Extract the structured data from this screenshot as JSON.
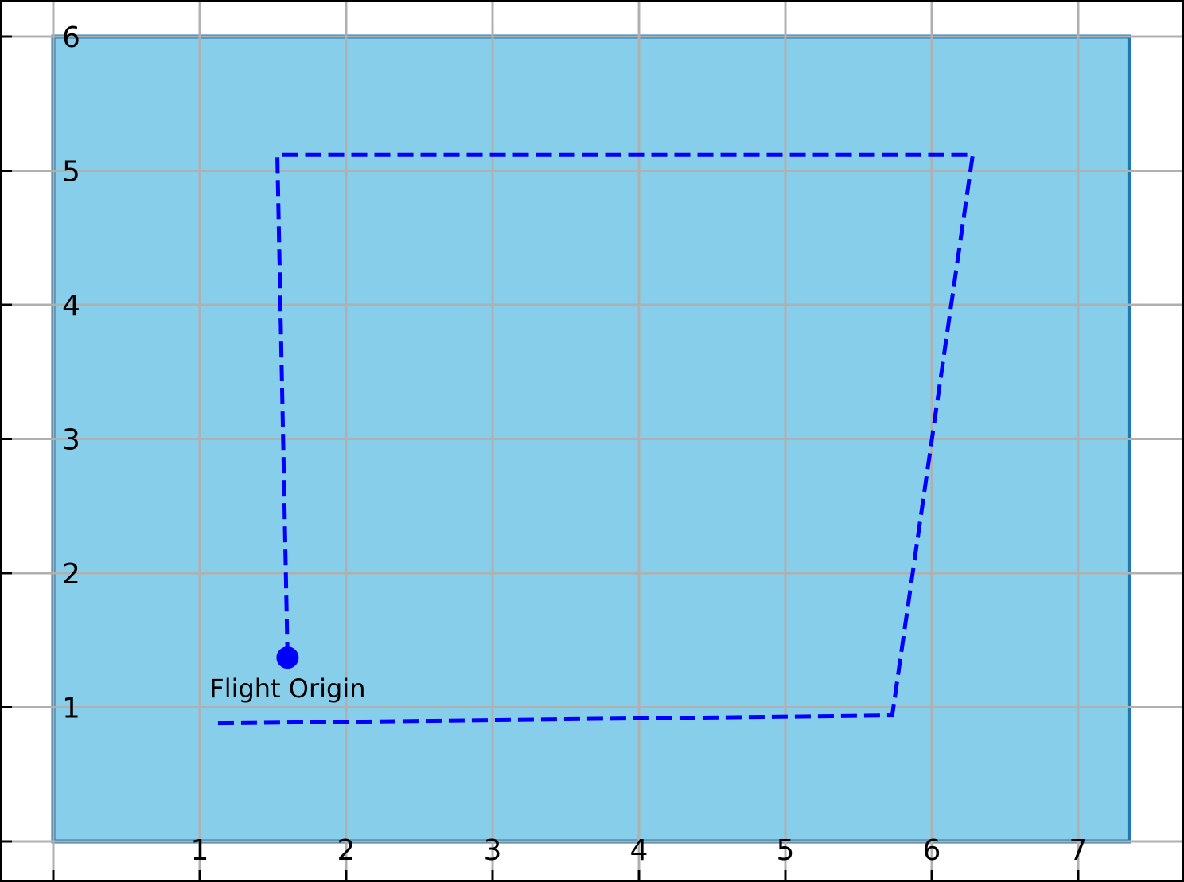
{
  "chart_data": {
    "type": "line",
    "title": "",
    "xlabel": "",
    "ylabel": "",
    "xlim": [
      0,
      7.6
    ],
    "ylim": [
      0,
      6.05
    ],
    "x_ticks": [
      1,
      2,
      3,
      4,
      5,
      6,
      7
    ],
    "y_ticks": [
      1,
      2,
      3,
      4,
      5,
      6
    ],
    "grid": true,
    "region": {
      "x": [
        0,
        7.35
      ],
      "y": [
        0,
        6
      ],
      "fill_color": "#87CEEB",
      "edge_color": "#1F77B4"
    },
    "series": [
      {
        "style": "dashed",
        "color": "#0000FF",
        "points": [
          [
            1.6,
            1.37
          ],
          [
            1.53,
            5.12
          ],
          [
            6.28,
            5.12
          ],
          [
            5.73,
            0.94
          ],
          [
            1.1,
            0.88
          ]
        ]
      }
    ],
    "marker": {
      "x": 1.6,
      "y": 1.37,
      "color": "#0000FF",
      "label": "Flight Origin"
    }
  }
}
